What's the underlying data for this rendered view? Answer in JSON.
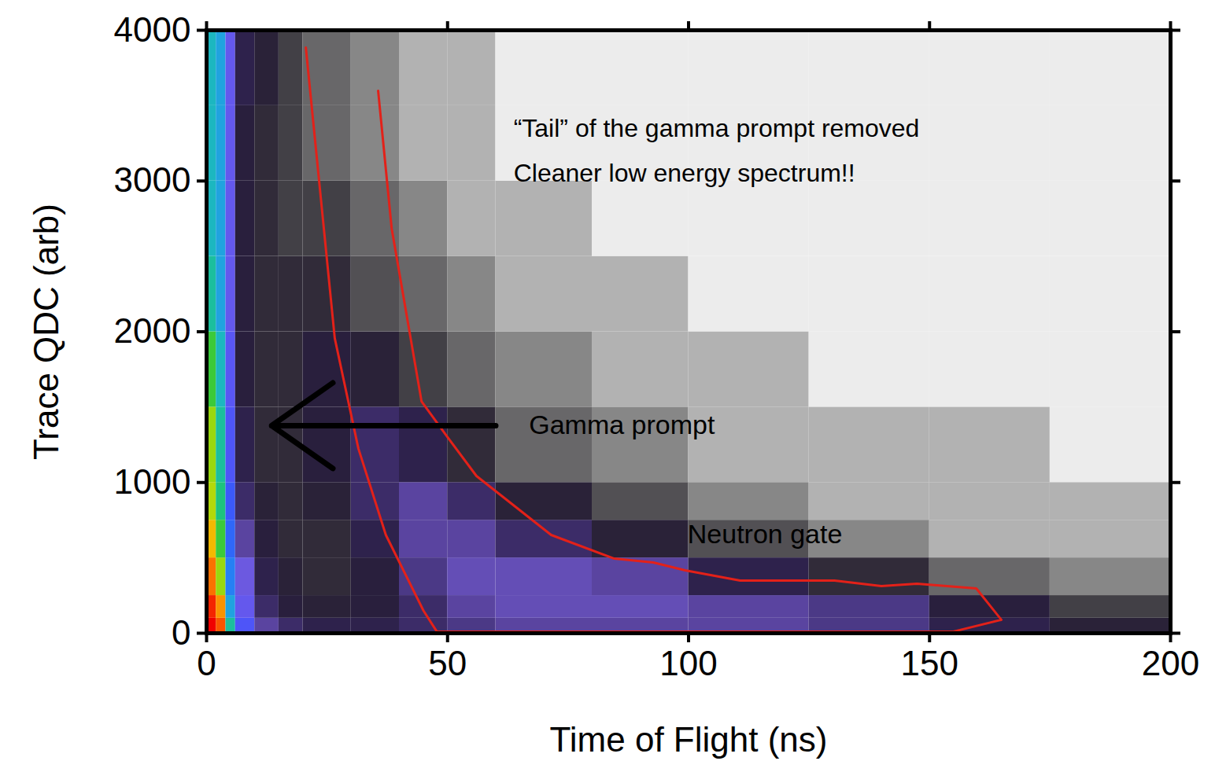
{
  "chart_data": {
    "type": "heatmap",
    "xlabel": "Time of Flight (ns)",
    "ylabel": "Trace QDC (arb)",
    "xlim": [
      0,
      200
    ],
    "ylim": [
      0,
      4000
    ],
    "xticks": [
      0,
      50,
      100,
      150,
      200
    ],
    "yticks": [
      0,
      1000,
      2000,
      3000,
      4000
    ],
    "heatmap": {
      "x_bins": [
        0,
        2,
        4,
        6,
        10,
        15,
        20,
        30,
        40,
        50,
        60,
        80,
        100,
        125,
        150,
        175,
        200
      ],
      "y_bins": [
        0,
        100,
        250,
        500,
        750,
        1000,
        1500,
        2000,
        2500,
        3000,
        3500,
        4000
      ],
      "counts": [
        [
          5000,
          3000,
          300,
          80,
          30,
          20,
          15,
          15,
          20,
          25,
          30,
          30,
          30,
          25,
          15,
          10
        ],
        [
          4000,
          2000,
          200,
          60,
          20,
          12,
          10,
          12,
          20,
          30,
          35,
          35,
          30,
          25,
          12,
          6
        ],
        [
          2500,
          800,
          150,
          50,
          15,
          10,
          8,
          12,
          25,
          35,
          35,
          30,
          15,
          8,
          4,
          3
        ],
        [
          1500,
          500,
          120,
          30,
          12,
          8,
          8,
          15,
          30,
          30,
          20,
          10,
          5,
          3,
          2,
          2
        ],
        [
          900,
          350,
          100,
          20,
          10,
          8,
          10,
          20,
          30,
          20,
          10,
          5,
          3,
          2,
          2,
          2
        ],
        [
          800,
          300,
          80,
          15,
          8,
          8,
          12,
          20,
          15,
          8,
          4,
          3,
          2,
          2,
          2,
          1
        ],
        [
          500,
          250,
          70,
          12,
          8,
          8,
          12,
          10,
          6,
          4,
          3,
          2,
          2,
          1,
          1,
          1
        ],
        [
          300,
          200,
          60,
          12,
          8,
          8,
          8,
          5,
          4,
          3,
          2,
          2,
          1,
          1,
          1,
          1
        ],
        [
          250,
          200,
          60,
          12,
          8,
          6,
          6,
          4,
          3,
          2,
          2,
          1,
          1,
          1,
          1,
          1
        ],
        [
          250,
          200,
          60,
          12,
          8,
          6,
          4,
          3,
          2,
          2,
          1,
          1,
          1,
          1,
          1,
          1
        ],
        [
          250,
          200,
          60,
          15,
          10,
          6,
          4,
          3,
          2,
          2,
          1,
          1,
          1,
          1,
          1,
          1
        ]
      ]
    },
    "series": [
      {
        "name": "Neutron gate",
        "type": "line",
        "color": "#e32119",
        "x": [
          35.6,
          38.4,
          44.6,
          50,
          56,
          71.5,
          84.6,
          92.7,
          99.3,
          110.7,
          130.3,
          140,
          147.4,
          159.7,
          164.9,
          154.8,
          100,
          47.8,
          45,
          37.2,
          31.5,
          26.6,
          20.6
        ],
        "values": [
          3598,
          2686,
          1538,
          1300,
          1043,
          652,
          495,
          469,
          417,
          349,
          349,
          313,
          329,
          297,
          89,
          10,
          10,
          10,
          150,
          652,
          1225,
          1956,
          3885
        ]
      }
    ],
    "annotations": [
      {
        "text": "“Tail” of the gamma prompt removed",
        "x": 63.7,
        "y": 3348
      },
      {
        "text": "Cleaner low energy spectrum!!",
        "x": 63.7,
        "y": 3051
      },
      {
        "text": "Gamma prompt",
        "x": 66.9,
        "y": 1377,
        "arrow_from": [
          60,
          1377
        ],
        "arrow_to": [
          13.5,
          1377
        ]
      },
      {
        "text": "Neutron gate",
        "x": 99.8,
        "y": 652
      }
    ]
  }
}
